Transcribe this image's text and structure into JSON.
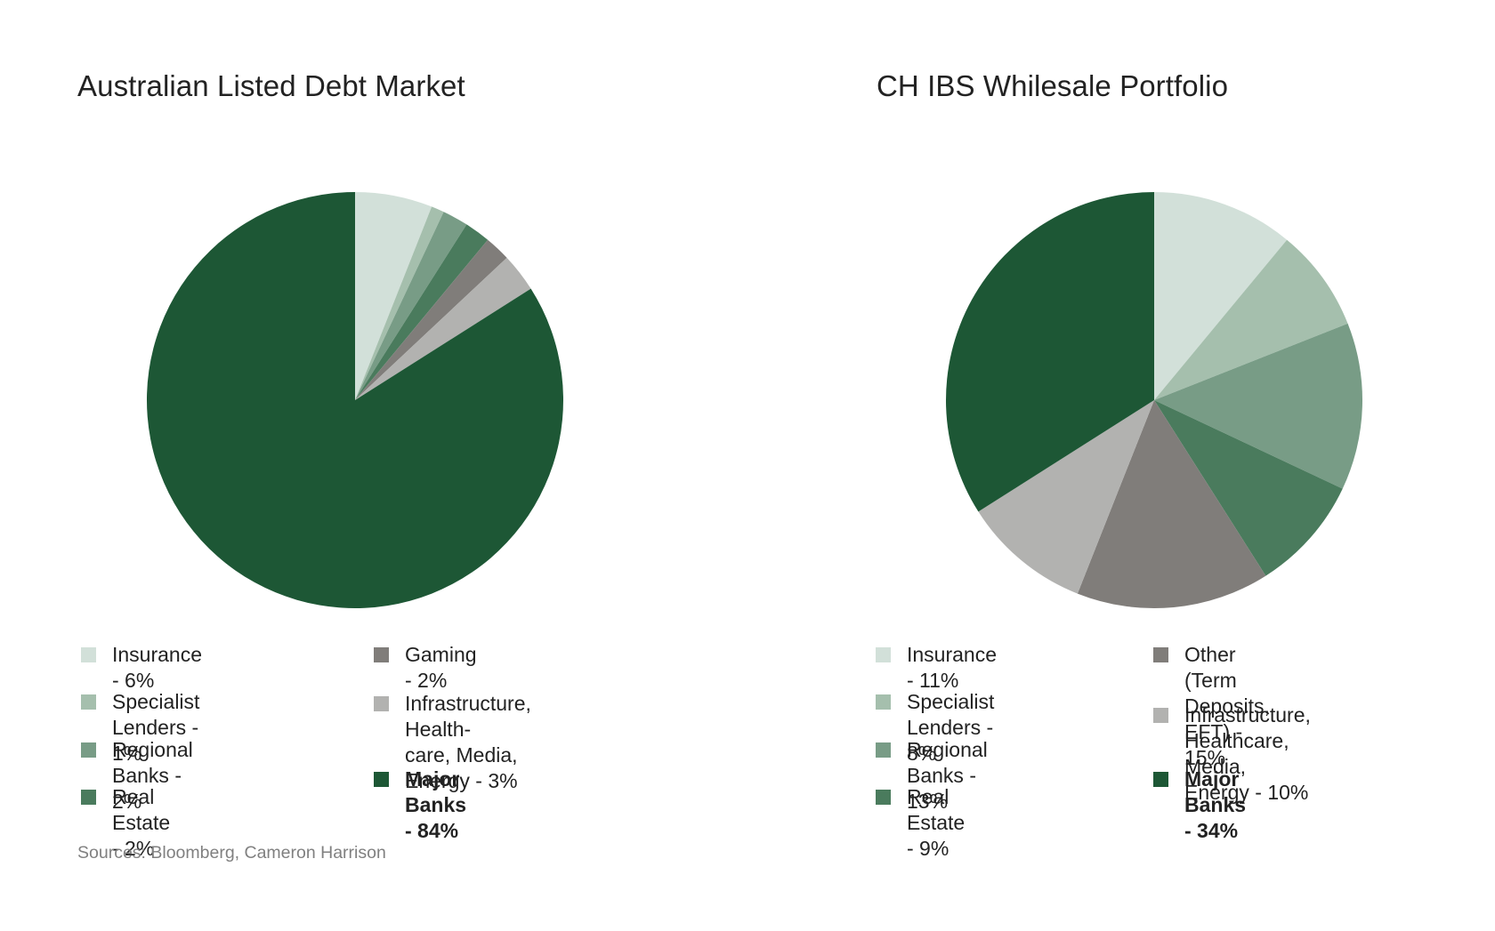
{
  "source_note": "Sources: Bloomberg, Cameron Harrison",
  "chart_data": [
    {
      "type": "pie",
      "title": "Australian Listed Debt Market",
      "slices": [
        {
          "label": "Insurance - 6%",
          "value": 6,
          "color": "#d2e0d9",
          "bold": false
        },
        {
          "label": "Specialist Lenders - 1%",
          "value": 1,
          "color": "#a5bfad",
          "bold": false
        },
        {
          "label": "Regional Banks - 2%",
          "value": 2,
          "color": "#789c86",
          "bold": false
        },
        {
          "label": "Real Estate - 2%",
          "value": 2,
          "color": "#4a7b5d",
          "bold": false
        },
        {
          "label": "Gaming - 2%",
          "value": 2,
          "color": "#807d7a",
          "bold": false
        },
        {
          "label": "Infrastructure, Health-\ncare, Media, Energy - 3%",
          "value": 3,
          "color": "#b2b2b0",
          "bold": false
        },
        {
          "label": "Major Banks - 84%",
          "value": 84,
          "color": "#1d5735",
          "bold": true
        }
      ]
    },
    {
      "type": "pie",
      "title": "CH IBS Whilesale Portfolio",
      "slices": [
        {
          "label": "Insurance - 11%",
          "value": 11,
          "color": "#d2e0d9",
          "bold": false
        },
        {
          "label": "Specialist Lenders - 8%",
          "value": 8,
          "color": "#a5bfad",
          "bold": false
        },
        {
          "label": "Regional Banks - 13%",
          "value": 13,
          "color": "#789c86",
          "bold": false
        },
        {
          "label": "Real Estate - 9%",
          "value": 9,
          "color": "#4a7b5d",
          "bold": false
        },
        {
          "label": "Other (Term Deposits,\nEFT) - 15%",
          "value": 15,
          "color": "#807d7a",
          "bold": false
        },
        {
          "label": "Infrastructure, Healthcare,\nMedia, Energy - 10%",
          "value": 10,
          "color": "#b2b2b0",
          "bold": false
        },
        {
          "label": "Major Banks - 34%",
          "value": 34,
          "color": "#1d5735",
          "bold": true
        }
      ]
    }
  ]
}
